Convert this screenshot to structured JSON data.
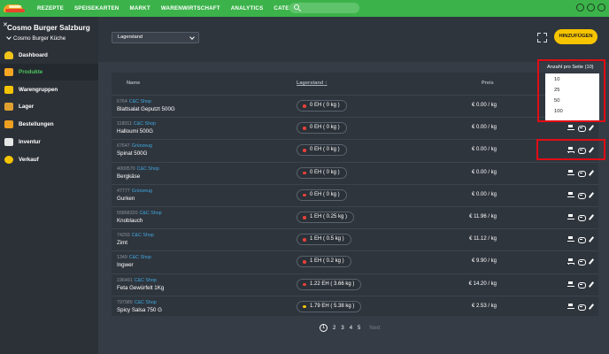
{
  "nav": {
    "items": [
      "REZEPTE",
      "SPEISEKARTEN",
      "MARKT",
      "WARENWIRTSCHAFT",
      "ANALYTICS",
      "CATERING"
    ],
    "search_placeholder": ""
  },
  "sidebar": {
    "org_name": "Cosmo Burger Salzburg",
    "org_sub": "Cosmo Burger Küche",
    "items": [
      {
        "label": "Dashboard",
        "icon": "dashboard-icon",
        "color": "#f0c419"
      },
      {
        "label": "Produkte",
        "icon": "products-icon",
        "color": "#f5a623",
        "active": true
      },
      {
        "label": "Warengruppen",
        "icon": "product-groups-icon",
        "color": "#f5c400"
      },
      {
        "label": "Lager",
        "icon": "storage-icon",
        "color": "#e0a030"
      },
      {
        "label": "Bestellungen",
        "icon": "truck-icon",
        "color": "#f0a020"
      },
      {
        "label": "Inventur",
        "icon": "clipboard-icon",
        "color": "#e6e6e6"
      },
      {
        "label": "Verkauf",
        "icon": "cash-icon",
        "color": "#f5c400"
      }
    ]
  },
  "toolbar": {
    "sort_select": "Lagerstand",
    "add_button": "HINZUFÜGEN"
  },
  "table": {
    "headers": {
      "name": "Name",
      "stock": "Lagerstand",
      "price": "Preis"
    },
    "rows": [
      {
        "sku": "6764",
        "category": "C&C Shop",
        "name": "Blattsalat Geputzt 500G",
        "stock": "0 EH ( 0 kg )",
        "dot": "red",
        "price": "€ 0.00 / kg"
      },
      {
        "sku": "118011",
        "category": "C&C Shop",
        "name": "Halloumi 500G",
        "stock": "0 EH ( 0 kg )",
        "dot": "red",
        "price": "€ 0.00 / kg"
      },
      {
        "sku": "67647",
        "category": "Grünzeug",
        "name": "Spinat 500G",
        "stock": "0 EH ( 0 kg )",
        "dot": "red",
        "price": "€ 0.00 / kg"
      },
      {
        "sku": "4000570",
        "category": "C&C Shop",
        "name": "Bergkäse",
        "stock": "0 EH ( 0 kg )",
        "dot": "red",
        "price": "€ 0.00 / kg"
      },
      {
        "sku": "47777",
        "category": "Grünzeug",
        "name": "Gurken",
        "stock": "0 EH ( 0 kg )",
        "dot": "red",
        "price": "€ 0.00 / kg"
      },
      {
        "sku": "55868320",
        "category": "C&C Shop",
        "name": "Knoblauch",
        "stock": "1 EH ( 0.25 kg )",
        "dot": "red",
        "price": "€ 11.96 / kg"
      },
      {
        "sku": "74293",
        "category": "C&C Shop",
        "name": "Zimt",
        "stock": "1 EH ( 0.5 kg )",
        "dot": "red",
        "price": "€ 11.12 / kg"
      },
      {
        "sku": "1349",
        "category": "C&C Shop",
        "name": "Ingwer",
        "stock": "1 EH ( 0.2 kg )",
        "dot": "red",
        "price": "€ 9.90 / kg"
      },
      {
        "sku": "196491",
        "category": "C&C Shop",
        "name": "Feta Gewürfelt 1Kg",
        "stock": "1.22 EH ( 3.66 kg )",
        "dot": "red",
        "price": "€ 14.20 / kg"
      },
      {
        "sku": "797989",
        "category": "C&C Shop",
        "name": "Spicy Salsa 750 G",
        "stock": "1.79 EH ( 5.38 kg )",
        "dot": "yellow",
        "price": "€ 2.53 / kg"
      }
    ]
  },
  "pager": {
    "pages": [
      "1",
      "2",
      "3",
      "4",
      "5"
    ],
    "current": "1",
    "next": "Next"
  },
  "per_page": {
    "label": "Anzahl pro Seite (10)",
    "options": [
      "10",
      "25",
      "50",
      "100"
    ]
  }
}
